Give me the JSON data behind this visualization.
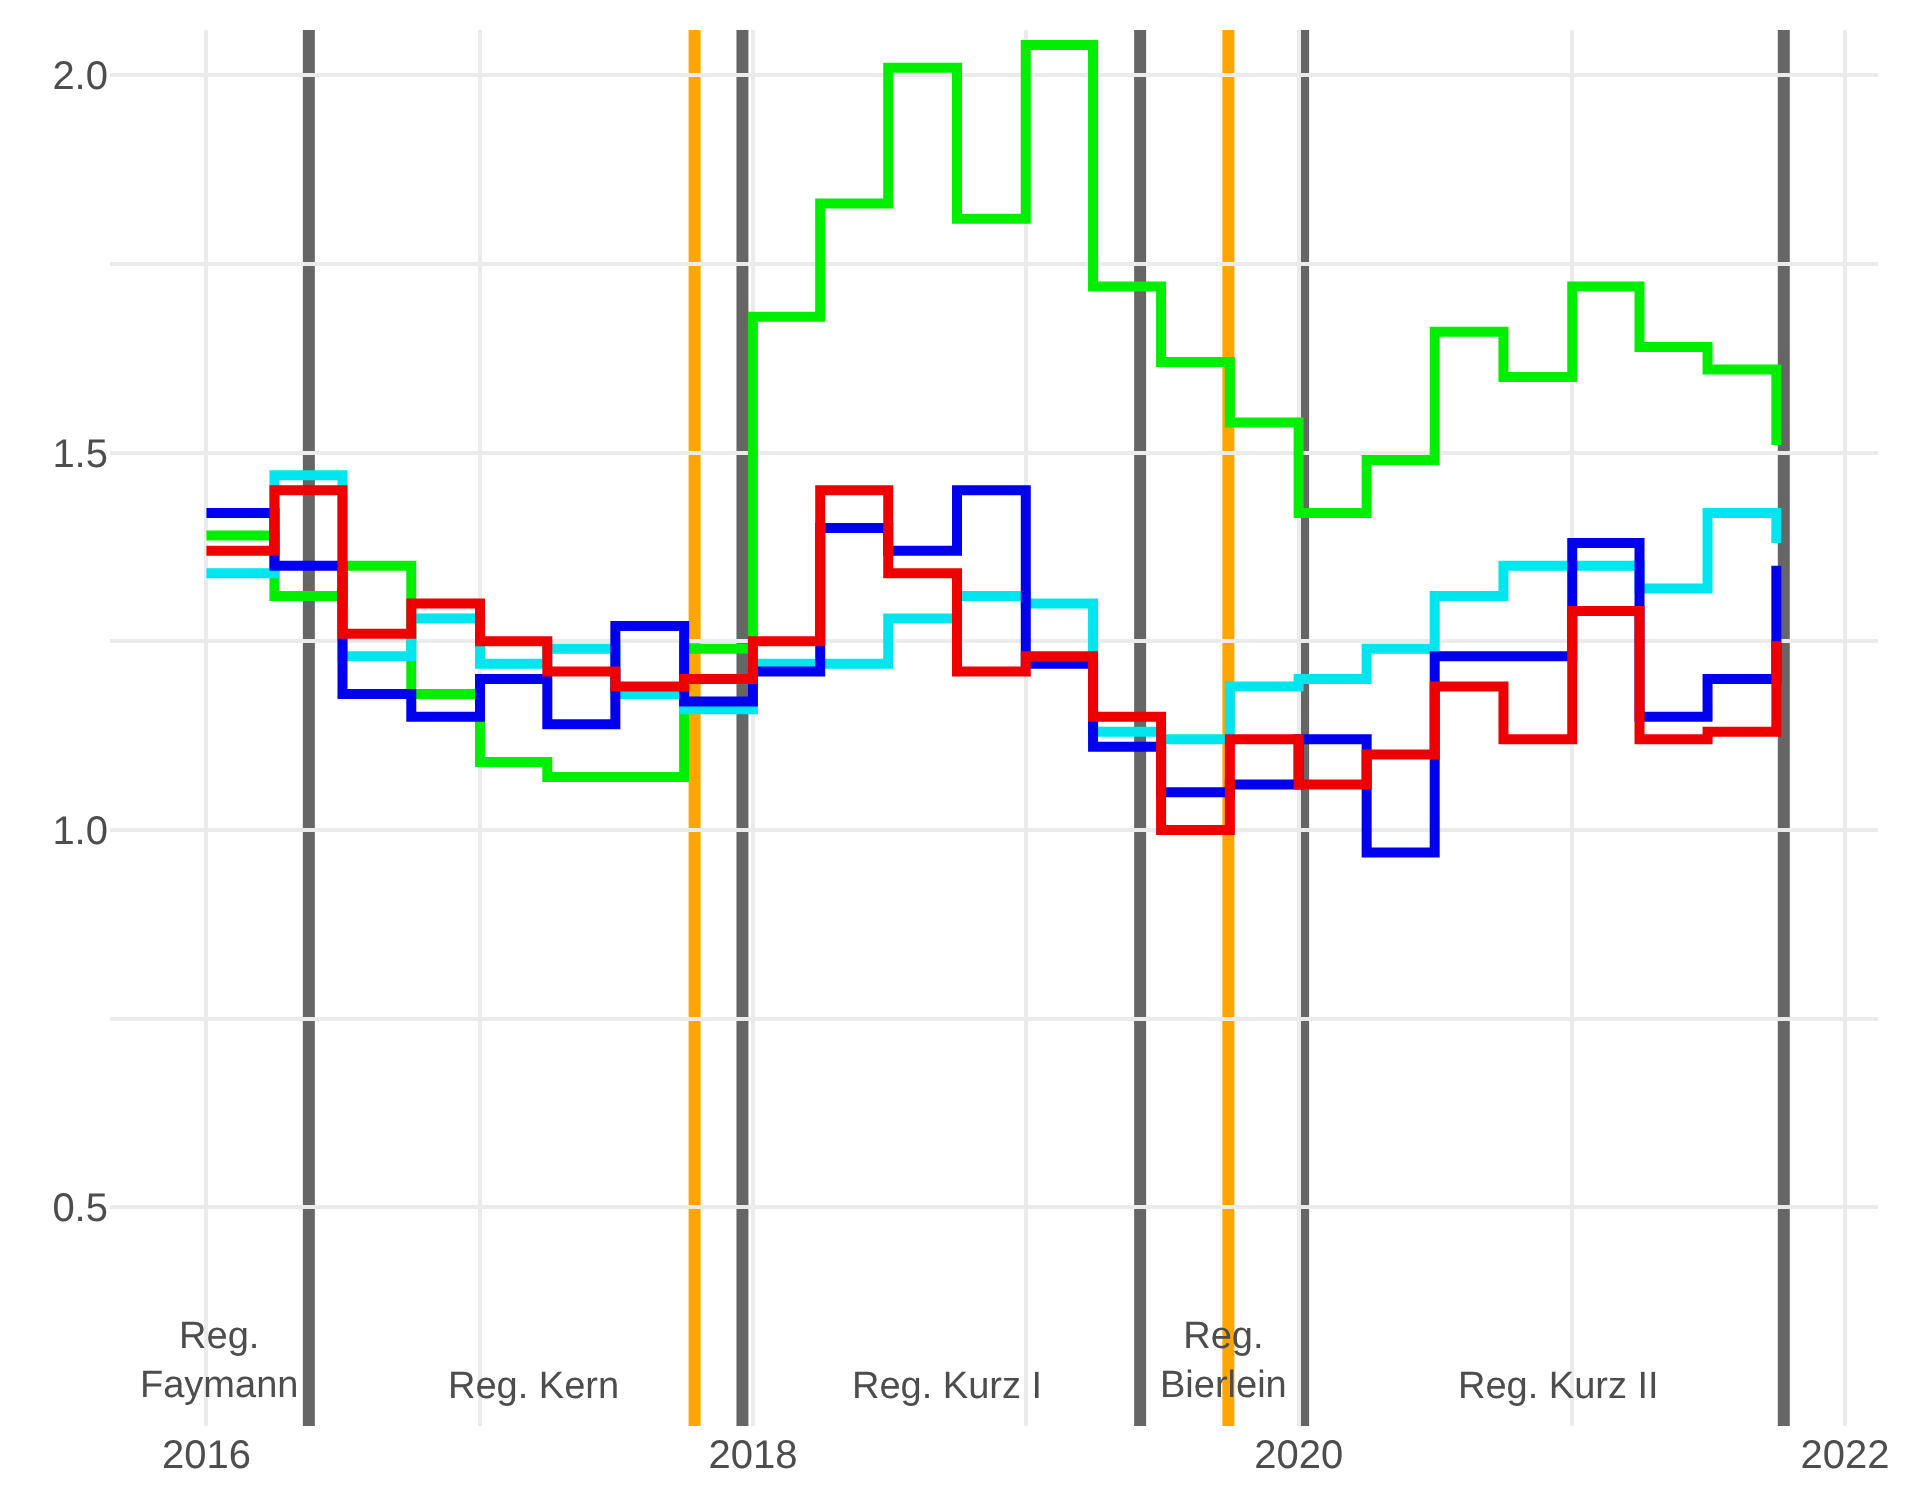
{
  "chart_data": {
    "type": "step",
    "x": [
      "2016-01-01",
      "2016-04-01",
      "2016-07-01",
      "2016-10-01",
      "2017-01-01",
      "2017-04-01",
      "2017-07-01",
      "2017-10-01",
      "2018-01-01",
      "2018-04-01",
      "2018-07-01",
      "2018-10-01",
      "2019-01-01",
      "2019-04-01",
      "2019-07-01",
      "2019-10-01",
      "2020-01-01",
      "2020-04-01",
      "2020-07-01",
      "2020-10-01",
      "2021-01-01",
      "2021-04-01",
      "2021-07-01",
      "2021-10-01"
    ],
    "series": [
      {
        "color": "#00ee00",
        "values": [
          1.39,
          1.31,
          1.35,
          1.18,
          1.09,
          1.07,
          1.07,
          1.24,
          1.68,
          1.83,
          2.01,
          1.81,
          2.04,
          1.72,
          1.62,
          1.54,
          1.42,
          1.49,
          1.66,
          1.6,
          1.72,
          1.64,
          1.61,
          1.51
        ]
      },
      {
        "color": "#00e5ee",
        "values": [
          1.34,
          1.47,
          1.23,
          1.28,
          1.22,
          1.24,
          1.18,
          1.16,
          1.22,
          1.22,
          1.28,
          1.31,
          1.3,
          1.13,
          1.12,
          1.19,
          1.2,
          1.24,
          1.31,
          1.35,
          1.35,
          1.32,
          1.42,
          1.38
        ]
      },
      {
        "color": "#0000ee",
        "values": [
          1.42,
          1.35,
          1.18,
          1.15,
          1.2,
          1.14,
          1.27,
          1.17,
          1.21,
          1.4,
          1.37,
          1.45,
          1.22,
          1.11,
          1.05,
          1.06,
          1.12,
          0.97,
          1.23,
          1.23,
          1.38,
          1.15,
          1.2,
          1.35
        ]
      },
      {
        "color": "#ee0000",
        "values": [
          1.37,
          1.45,
          1.26,
          1.3,
          1.25,
          1.21,
          1.19,
          1.2,
          1.25,
          1.45,
          1.34,
          1.21,
          1.23,
          1.15,
          1.0,
          1.12,
          1.06,
          1.1,
          1.19,
          1.12,
          1.29,
          1.12,
          1.13,
          1.25
        ]
      }
    ],
    "xlim": [
      "2015-08-25",
      "2022-02-14"
    ],
    "xticks": [
      {
        "value": "2016-01-01",
        "label": "2016"
      },
      {
        "value": "2017-01-01",
        "label": null
      },
      {
        "value": "2018-01-01",
        "label": "2018"
      },
      {
        "value": "2019-01-01",
        "label": null
      },
      {
        "value": "2020-01-01",
        "label": "2020"
      },
      {
        "value": "2021-01-01",
        "label": null
      },
      {
        "value": "2022-01-01",
        "label": "2022"
      }
    ],
    "ylim": [
      0.21,
      2.06
    ],
    "yticks": [
      {
        "value": 0.5,
        "label": "0.5"
      },
      {
        "value": 0.75,
        "label": null
      },
      {
        "value": 1.0,
        "label": "1.0"
      },
      {
        "value": 1.25,
        "label": null
      },
      {
        "value": 1.5,
        "label": "1.5"
      },
      {
        "value": 1.75,
        "label": null
      },
      {
        "value": 2.0,
        "label": "2.0"
      }
    ],
    "grid": true,
    "ref_lines": [
      {
        "axis": "x",
        "value": "2016-05-17",
        "color": "#666666"
      },
      {
        "axis": "x",
        "value": "2017-10-15",
        "color": "#ffa500"
      },
      {
        "axis": "x",
        "value": "2017-12-18",
        "color": "#666666"
      },
      {
        "axis": "x",
        "value": "2019-06-03",
        "color": "#666666"
      },
      {
        "axis": "x",
        "value": "2019-09-29",
        "color": "#ffa500"
      },
      {
        "axis": "x",
        "value": "2020-01-07",
        "color": "#666666"
      },
      {
        "axis": "x",
        "value": "2021-10-11",
        "color": "#666666"
      }
    ],
    "annotations": [
      "Reg.\nFaymann",
      "Reg. Kern",
      "Reg. Kurz I",
      "Reg.\nBierlein",
      "Reg. Kurz II"
    ]
  }
}
